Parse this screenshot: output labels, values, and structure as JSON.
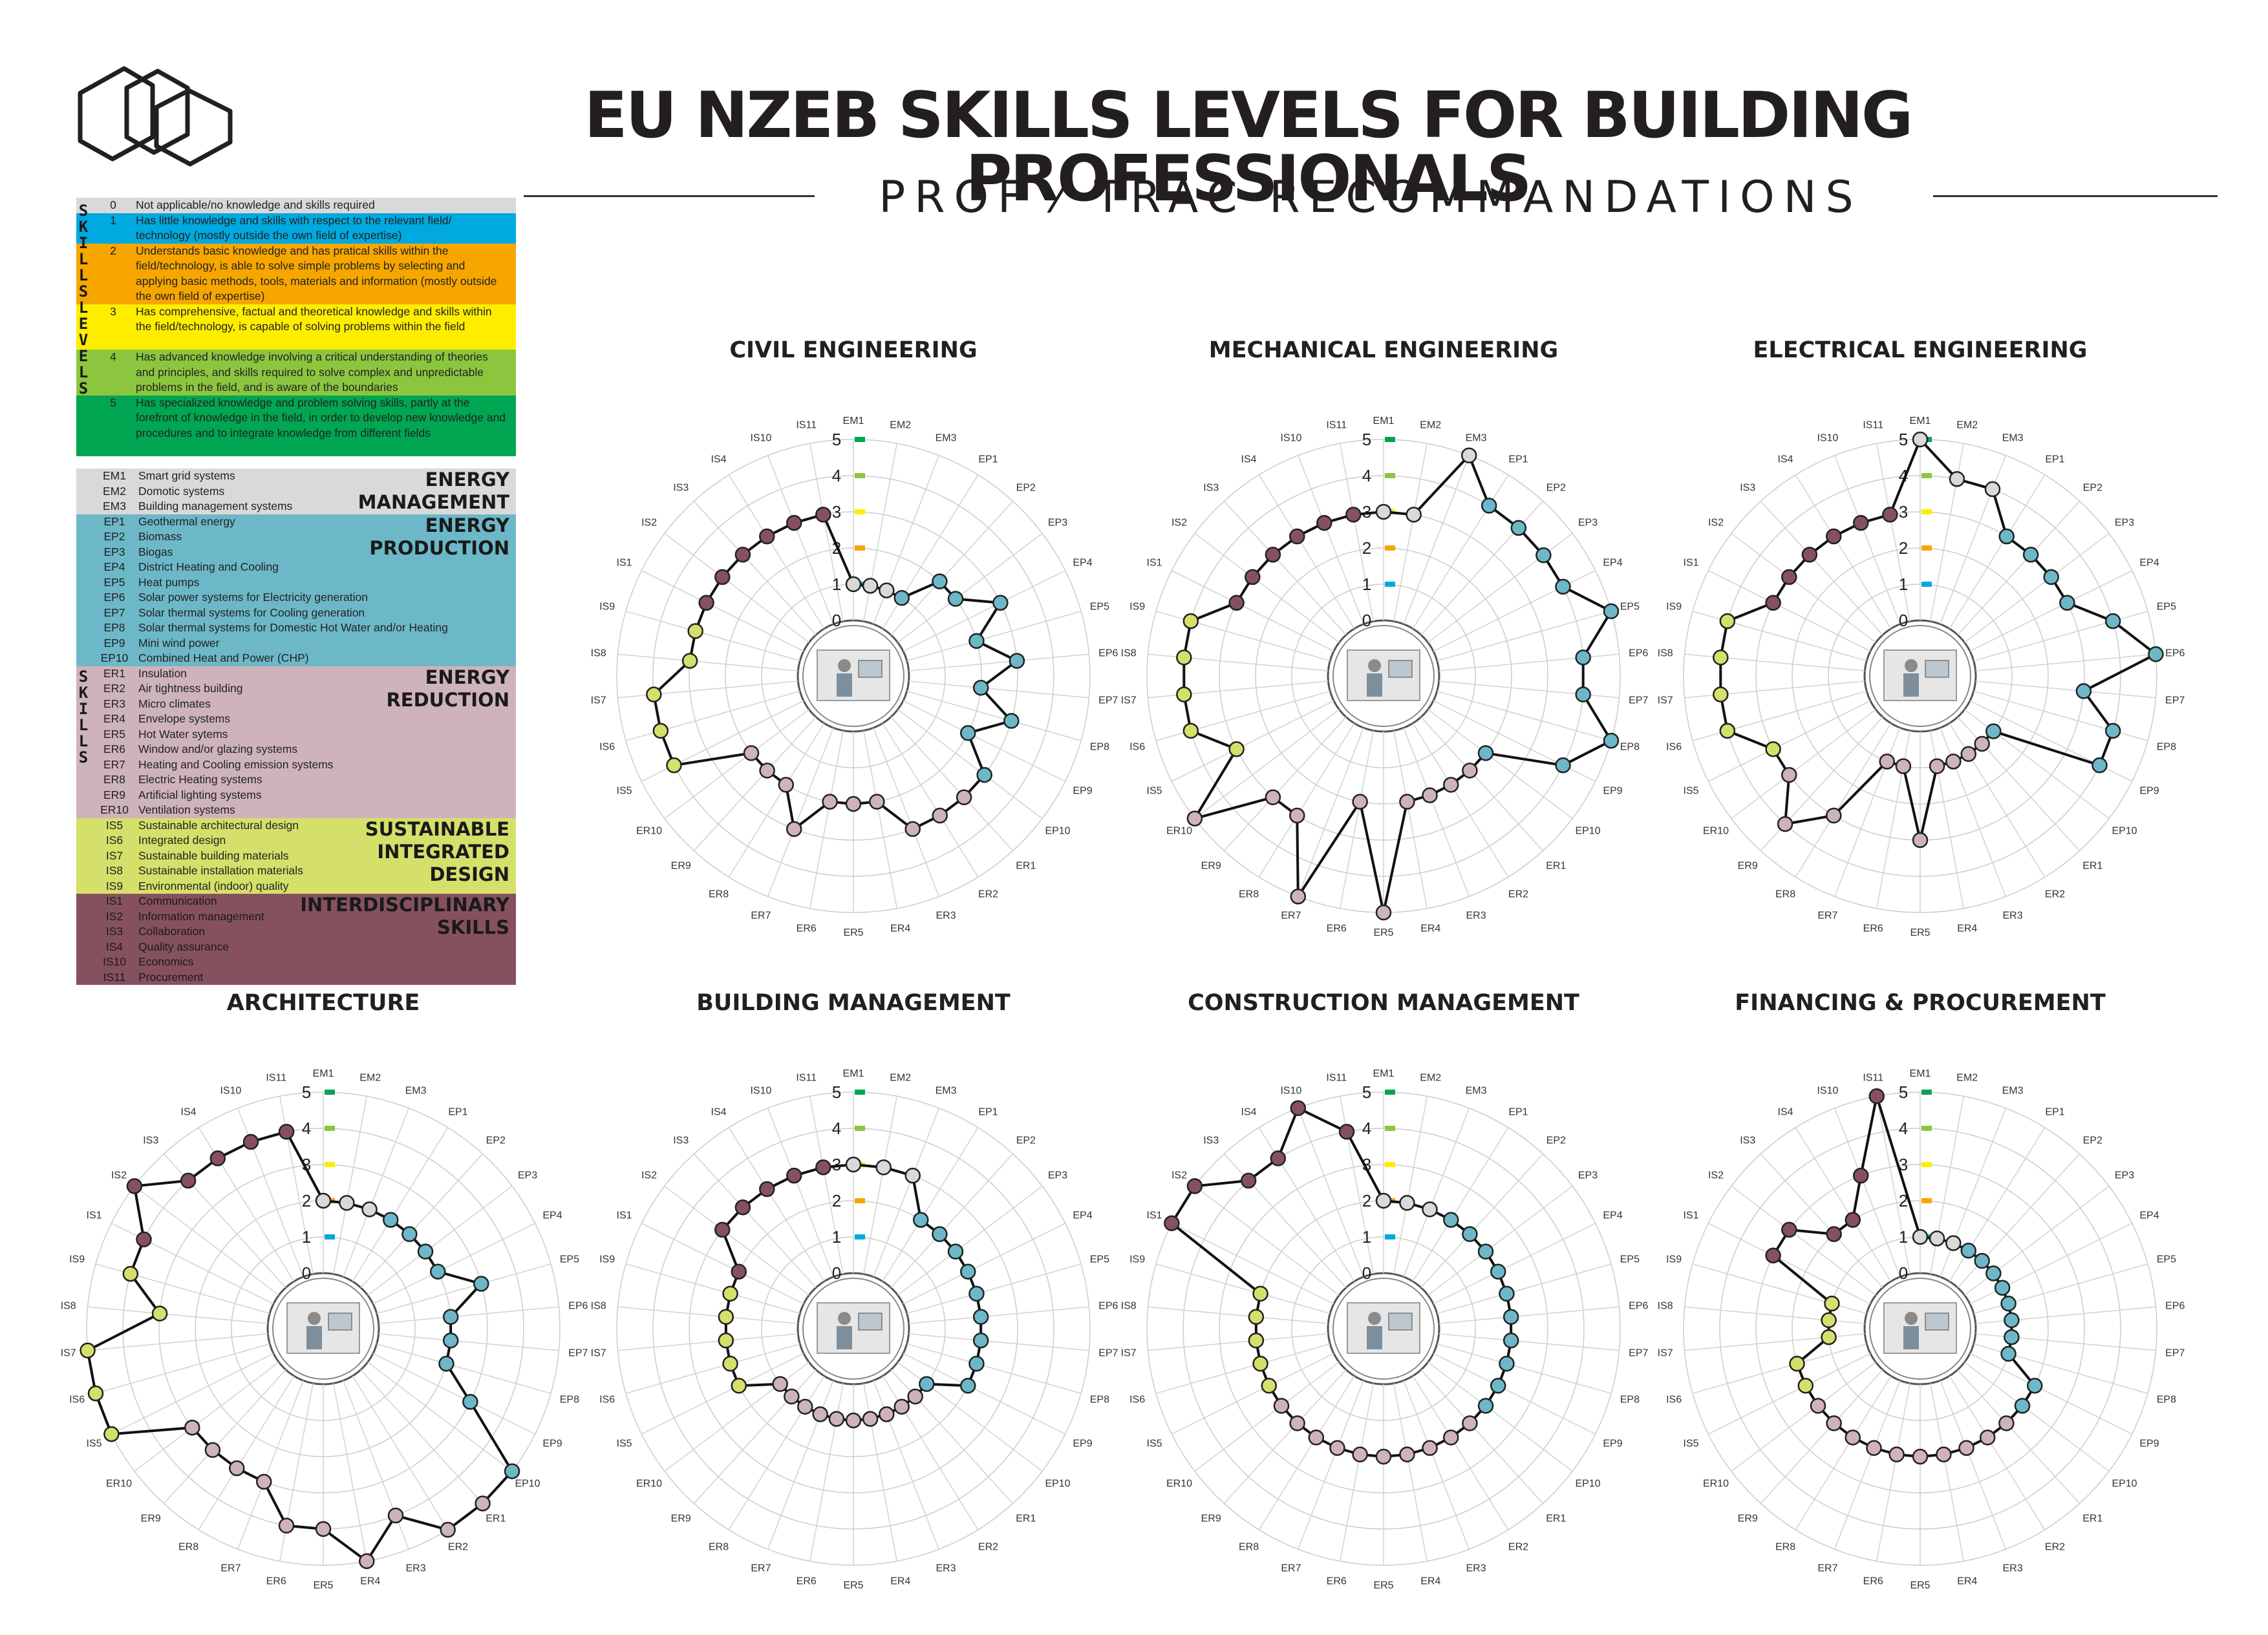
{
  "header": {
    "title": "EU NZEB SKILLS LEVELS FOR  BUILDING PROFESSIONALS",
    "subtitle": "PROF ⁄ TRAC   RECOMMANDATIONS"
  },
  "levels_legend": {
    "side_label": "SKILLS LEVELS",
    "items": [
      {
        "level": "0",
        "text": "Not applicable/no knowledge and skills required",
        "color": "#d9d9d9"
      },
      {
        "level": "1",
        "text": "Has little knowledge and skills with respect to the relevant field/ technology (mostly outside the own field of expertise)",
        "color": "#00a9e0"
      },
      {
        "level": "2",
        "text": "Understands basic knowledge and has pratical skills within the field/technology, is able to solve simple problems by selecting and applying basic methods, tools, materials and information (mostly outside the own field of expertise)",
        "color": "#f7a600"
      },
      {
        "level": "3",
        "text": "Has comprehensive, factual and theoretical knowledge and skills within the field/technology, is capable of solving problems within the field",
        "color": "#ffed00"
      },
      {
        "level": "4",
        "text": "Has advanced knowledge involving a critical understanding of theories and principles, and skills required to solve complex and unpredictable problems in the field, and is aware of the boundaries",
        "color": "#8cc63f"
      },
      {
        "level": "5",
        "text": "Has specialized knowledge and problem solving skills, partly at the forefront of knowledge in the field, in order to develop new knowledge and procedures and to integrate knowledge from different fields",
        "color": "#00a651"
      }
    ]
  },
  "skills_legend": {
    "side_label": "SKILLS",
    "groups": [
      {
        "title": "ENERGY\nMANAGEMENT",
        "color": "#d9d9d9",
        "items": [
          {
            "code": "EM1",
            "label": "Smart grid systems"
          },
          {
            "code": "EM2",
            "label": "Domotic systems"
          },
          {
            "code": "EM3",
            "label": "Building management systems"
          }
        ]
      },
      {
        "title": "ENERGY\nPRODUCTION",
        "color": "#6cb8c9",
        "items": [
          {
            "code": "EP1",
            "label": "Geothermal energy"
          },
          {
            "code": "EP2",
            "label": "Biomass"
          },
          {
            "code": "EP3",
            "label": "Biogas"
          },
          {
            "code": "EP4",
            "label": "District Heating and Cooling"
          },
          {
            "code": "EP5",
            "label": "Heat pumps"
          },
          {
            "code": "EP6",
            "label": "Solar power systems for Electricity generation"
          },
          {
            "code": "EP7",
            "label": "Solar thermal systems for Cooling generation"
          },
          {
            "code": "EP8",
            "label": "Solar thermal systems for Domestic Hot Water and/or Heating"
          },
          {
            "code": "EP9",
            "label": "Mini wind power"
          },
          {
            "code": "EP10",
            "label": "Combined Heat and Power (CHP)"
          }
        ]
      },
      {
        "title": "ENERGY\nREDUCTION",
        "color": "#cfb3ba",
        "items": [
          {
            "code": "ER1",
            "label": "Insulation"
          },
          {
            "code": "ER2",
            "label": "Air tightness building"
          },
          {
            "code": "ER3",
            "label": "Micro climates"
          },
          {
            "code": "ER4",
            "label": "Envelope systems"
          },
          {
            "code": "ER5",
            "label": "Hot Water sytems"
          },
          {
            "code": "ER6",
            "label": "Window and/or glazing systems"
          },
          {
            "code": "ER7",
            "label": "Heating and Cooling emission systems"
          },
          {
            "code": "ER8",
            "label": "Electric Heating systems"
          },
          {
            "code": "ER9",
            "label": "Artificial lighting systems"
          },
          {
            "code": "ER10",
            "label": "Ventilation systems"
          }
        ]
      },
      {
        "title": "SUSTAINABLE\nINTEGRATED\nDESIGN",
        "color": "#d4e06a",
        "items": [
          {
            "code": "IS5",
            "label": "Sustainable architectural design"
          },
          {
            "code": "IS6",
            "label": "Integrated design"
          },
          {
            "code": "IS7",
            "label": "Sustainable building materials"
          },
          {
            "code": "IS8",
            "label": "Sustainable installation materials"
          },
          {
            "code": "IS9",
            "label": "Environmental (indoor) quality"
          }
        ]
      },
      {
        "title": "INTERDISCIPLINARY\nSKILLS",
        "color": "#86515f",
        "items": [
          {
            "code": "IS1",
            "label": "Communication"
          },
          {
            "code": "IS2",
            "label": "Information management"
          },
          {
            "code": "IS3",
            "label": "Collaboration"
          },
          {
            "code": "IS4",
            "label": "Quality assurance"
          },
          {
            "code": "IS10",
            "label": "Economics"
          },
          {
            "code": "IS11",
            "label": "Procurement"
          }
        ]
      }
    ]
  },
  "chart_data": {
    "type": "radar",
    "axes": [
      "EM1",
      "EM2",
      "EM3",
      "EP1",
      "EP2",
      "EP3",
      "EP4",
      "EP5",
      "EP6",
      "EP7",
      "EP8",
      "EP9",
      "EP10",
      "ER1",
      "ER2",
      "ER3",
      "ER4",
      "ER5",
      "ER6",
      "ER7",
      "ER8",
      "ER9",
      "ER10",
      "IS5",
      "IS6",
      "IS7",
      "IS8",
      "IS9",
      "IS1",
      "IS2",
      "IS3",
      "IS4",
      "IS10",
      "IS11"
    ],
    "rlim": [
      0,
      5
    ],
    "ticks": [
      "0",
      "1",
      "2",
      "3",
      "4",
      "5"
    ],
    "tick_colors": [
      "#d9d9d9",
      "#00a9e0",
      "#f7a600",
      "#ffed00",
      "#8cc63f",
      "#00a651"
    ],
    "point_colors": {
      "EM": "#d9d9d9",
      "EP": "#6cb8c9",
      "ER": "#cfb3ba",
      "ISD": "#d4e06a",
      "ISI": "#86515f"
    },
    "charts": [
      {
        "title": "CIVIL ENGINEERING",
        "values": [
          1,
          1,
          1,
          1,
          2,
          2,
          3,
          2,
          3,
          2,
          3,
          2,
          3,
          3,
          3,
          3,
          2,
          2,
          2,
          3,
          2,
          2,
          2,
          4,
          4,
          4,
          3,
          3,
          3,
          3,
          3,
          3,
          3,
          3
        ]
      },
      {
        "title": "MECHANICAL ENGINEERING",
        "values": [
          3,
          3,
          5,
          4,
          4,
          4,
          4,
          5,
          4,
          4,
          5,
          4,
          2,
          2,
          2,
          2,
          2,
          5,
          2,
          5,
          3,
          3,
          5,
          3,
          4,
          4,
          4,
          4,
          3,
          3,
          3,
          3,
          3,
          3
        ]
      },
      {
        "title": "ELECTRICAL ENGINEERING",
        "values": [
          5,
          4,
          4,
          3,
          3,
          3,
          3,
          4,
          5,
          3,
          4,
          4,
          1,
          1,
          1,
          1,
          1,
          3,
          1,
          1,
          3,
          4,
          3,
          3,
          4,
          4,
          4,
          4,
          3,
          3,
          3,
          3,
          3,
          3
        ]
      },
      {
        "title": "ARCHITECTURE",
        "values": [
          2,
          2,
          2,
          2,
          2,
          2,
          2,
          3,
          2,
          2,
          2,
          3,
          5,
          5,
          5,
          4,
          5,
          4,
          4,
          3,
          3,
          3,
          3,
          5,
          5,
          5,
          3,
          4,
          4,
          5,
          4,
          4,
          4,
          4
        ]
      },
      {
        "title": "BUILDING MANAGEMENT",
        "values": [
          3,
          3,
          3,
          2,
          2,
          2,
          2,
          2,
          2,
          2,
          2,
          2,
          1,
          1,
          1,
          1,
          1,
          1,
          1,
          1,
          1,
          1,
          1,
          2,
          2,
          2,
          2,
          2,
          2,
          3,
          3,
          3,
          3,
          3
        ]
      },
      {
        "title": "CONSTRUCTION MANAGEMENT",
        "values": [
          2,
          2,
          2,
          2,
          2,
          2,
          2,
          2,
          2,
          2,
          2,
          2,
          2,
          2,
          2,
          2,
          2,
          2,
          2,
          2,
          2,
          2,
          2,
          2,
          2,
          2,
          2,
          2,
          5,
          5,
          4,
          4,
          5,
          4
        ]
      },
      {
        "title": "FINANCING & PROCUREMENT",
        "values": [
          1,
          1,
          1,
          1,
          1,
          1,
          1,
          1,
          1,
          1,
          1,
          2,
          2,
          2,
          2,
          2,
          2,
          2,
          2,
          2,
          2,
          2,
          2,
          2,
          2,
          1,
          1,
          1,
          3,
          3,
          2,
          2,
          3,
          5
        ]
      }
    ]
  }
}
